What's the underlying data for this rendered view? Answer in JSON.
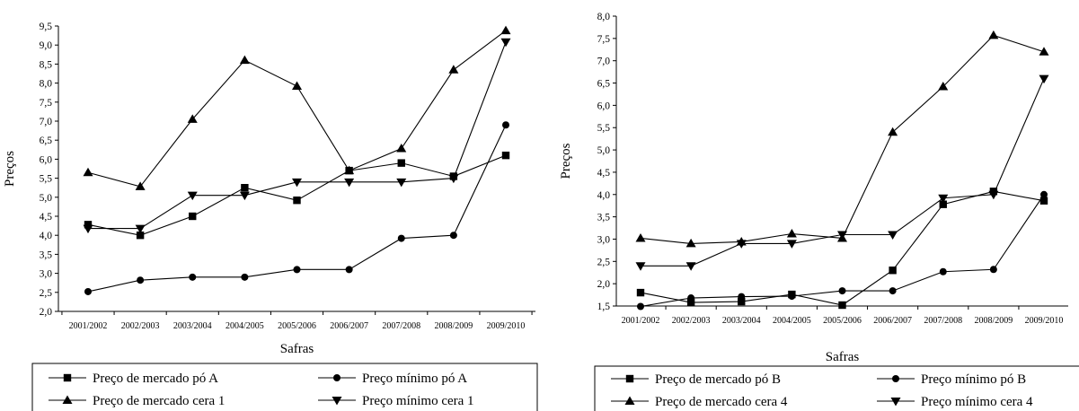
{
  "chart_data": [
    {
      "type": "line",
      "xlabel": "Safras",
      "ylabel": "Preços",
      "categories": [
        "2001/2002",
        "2002/2003",
        "2003/2004",
        "2004/2005",
        "2005/2006",
        "2006/2007",
        "2007/2008",
        "2008/2009",
        "2009/2010"
      ],
      "ylim": [
        2.0,
        9.5
      ],
      "yticks": [
        "2,0",
        "2,5",
        "3,0",
        "3,5",
        "4,0",
        "4,5",
        "5,0",
        "5,5",
        "6,0",
        "6,5",
        "7,0",
        "7,5",
        "8,0",
        "8,5",
        "9,0",
        "9,5"
      ],
      "grid": false,
      "legend_position": "bottom",
      "series": [
        {
          "name": "Preço de mercado pó A",
          "marker": "square",
          "values": [
            4.28,
            4.0,
            4.5,
            5.25,
            4.92,
            5.7,
            5.9,
            5.55,
            6.1
          ]
        },
        {
          "name": "Preço mínimo pó A",
          "marker": "circle",
          "values": [
            2.52,
            2.82,
            2.9,
            2.9,
            3.1,
            3.1,
            3.92,
            4.0,
            6.9
          ]
        },
        {
          "name": "Preço de mercado cera 1",
          "marker": "triangle-up",
          "values": [
            5.65,
            5.28,
            7.05,
            8.6,
            7.92,
            5.7,
            6.28,
            8.35,
            9.38
          ]
        },
        {
          "name": "Preço mínimo cera 1",
          "marker": "triangle-down",
          "values": [
            4.18,
            4.18,
            5.05,
            5.05,
            5.4,
            5.4,
            5.4,
            5.5,
            9.08
          ]
        }
      ]
    },
    {
      "type": "line",
      "xlabel": "Safras",
      "ylabel": "Preços",
      "categories": [
        "2001/2002",
        "2002/2003",
        "2003/2004",
        "2004/2005",
        "2005/2006",
        "2006/2007",
        "2007/2008",
        "2008/2009",
        "2009/2010"
      ],
      "ylim": [
        1.5,
        8.0
      ],
      "yticks": [
        "1,5",
        "2,0",
        "2,5",
        "3,0",
        "3,5",
        "4,0",
        "4,5",
        "5,0",
        "5,5",
        "6,0",
        "6,5",
        "7,0",
        "7,5",
        "8,0"
      ],
      "grid": false,
      "legend_position": "bottom",
      "series": [
        {
          "name": "Preço de mercado pó B",
          "marker": "square",
          "values": [
            1.8,
            1.58,
            1.6,
            1.76,
            1.52,
            2.3,
            3.78,
            4.07,
            3.86
          ]
        },
        {
          "name": "Preço mínimo pó B",
          "marker": "circle",
          "values": [
            1.49,
            1.68,
            1.71,
            1.72,
            1.84,
            1.84,
            2.27,
            2.32,
            4.0
          ]
        },
        {
          "name": "Preço de mercado cera 4",
          "marker": "triangle-up",
          "values": [
            3.02,
            2.9,
            2.94,
            3.12,
            3.02,
            5.4,
            6.42,
            7.57,
            7.2
          ]
        },
        {
          "name": "Preço mínimo cera 4",
          "marker": "triangle-down",
          "values": [
            2.4,
            2.4,
            2.9,
            2.9,
            3.1,
            3.1,
            3.92,
            4.0,
            6.6
          ]
        }
      ]
    }
  ]
}
